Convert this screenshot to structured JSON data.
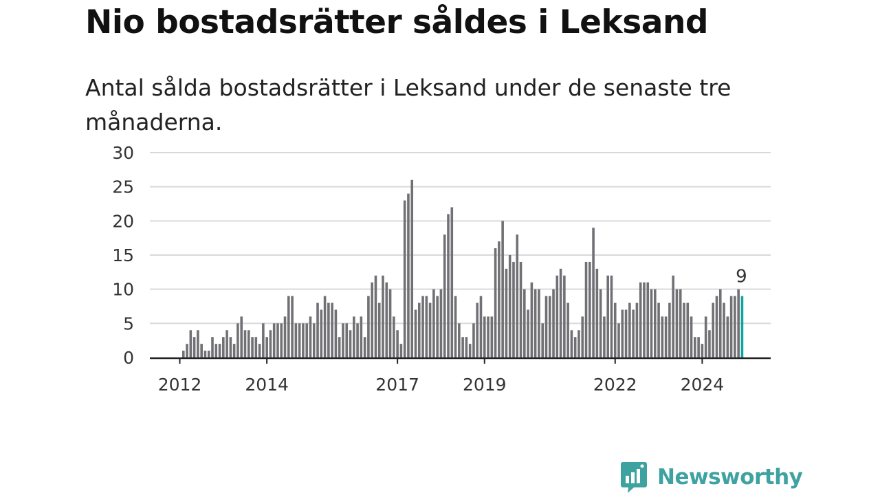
{
  "header": {
    "title": "Nio bostadsrätter såldes i Leksand",
    "subtitle": "Antal sålda bostadsrätter i Leksand under de senaste tre månaderna."
  },
  "brand": {
    "name": "Newsworthy",
    "logo_icon": "bar-chart-speech-bubble-icon",
    "color": "#3ea3a0"
  },
  "colors": {
    "bar": "#717075",
    "highlight": "#11a39d",
    "grid": "#d9d9d9",
    "axis": "#222222"
  },
  "chart_data": {
    "type": "bar",
    "title": "Nio bostadsrätter såldes i Leksand",
    "subtitle": "Antal sålda bostadsrätter i Leksand under de senaste tre månaderna.",
    "xlabel": "",
    "ylabel": "",
    "ylim": [
      0,
      30
    ],
    "yticks": [
      0,
      5,
      10,
      15,
      20,
      25,
      30
    ],
    "grid": true,
    "x_start": "2012-01",
    "x_ticks": [
      {
        "label": "2012",
        "date": "2012-01"
      },
      {
        "label": "2014",
        "date": "2014-01"
      },
      {
        "label": "2017",
        "date": "2017-01"
      },
      {
        "label": "2019",
        "date": "2019-01"
      },
      {
        "label": "2022",
        "date": "2022-01"
      },
      {
        "label": "2024",
        "date": "2024-01"
      }
    ],
    "values": [
      0,
      1,
      2,
      4,
      3,
      4,
      2,
      1,
      1,
      3,
      2,
      2,
      3,
      4,
      3,
      2,
      5,
      6,
      4,
      4,
      3,
      3,
      2,
      5,
      3,
      4,
      5,
      5,
      5,
      6,
      9,
      9,
      5,
      5,
      5,
      5,
      6,
      5,
      8,
      7,
      9,
      8,
      8,
      7,
      3,
      5,
      5,
      4,
      6,
      5,
      6,
      3,
      9,
      11,
      12,
      8,
      12,
      11,
      10,
      6,
      4,
      2,
      23,
      24,
      26,
      7,
      8,
      9,
      9,
      8,
      10,
      9,
      10,
      18,
      21,
      22,
      9,
      5,
      3,
      3,
      2,
      5,
      8,
      9,
      6,
      6,
      6,
      16,
      17,
      20,
      13,
      15,
      14,
      18,
      14,
      10,
      7,
      11,
      10,
      10,
      5,
      9,
      9,
      10,
      12,
      13,
      12,
      8,
      4,
      3,
      4,
      6,
      14,
      14,
      19,
      13,
      10,
      6,
      12,
      12,
      8,
      5,
      7,
      7,
      8,
      7,
      8,
      11,
      11,
      11,
      10,
      10,
      8,
      6,
      6,
      8,
      12,
      10,
      10,
      8,
      8,
      6,
      3,
      3,
      2,
      6,
      4,
      8,
      9,
      10,
      8,
      6,
      9,
      9,
      10,
      9
    ],
    "highlight_last": true,
    "annotation": {
      "text": "9",
      "target": "last"
    }
  }
}
